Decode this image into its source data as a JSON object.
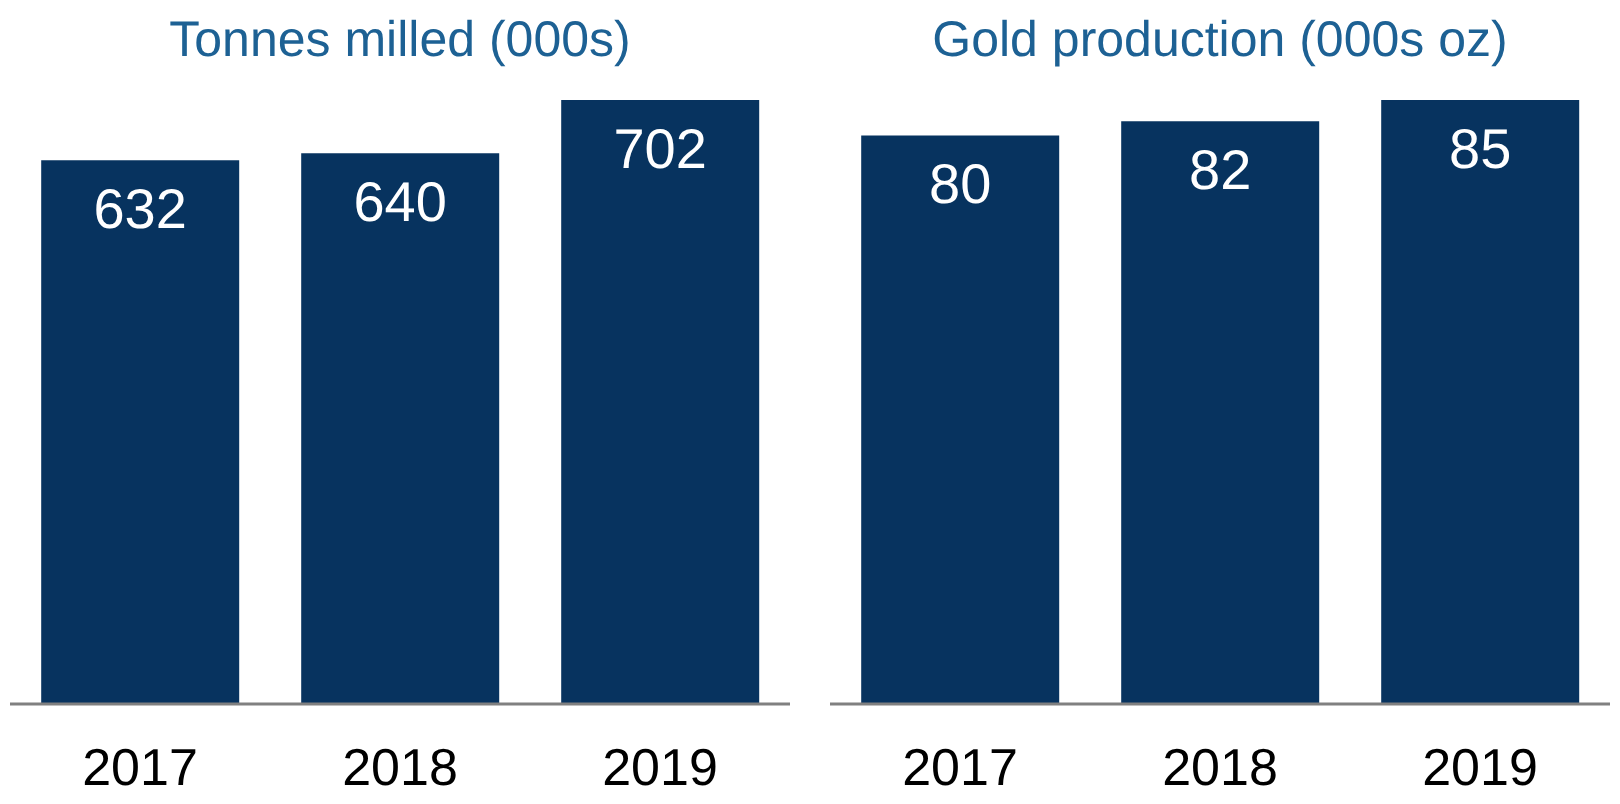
{
  "chart_data": [
    {
      "type": "bar",
      "title": "Tonnes milled (000s)",
      "categories": [
        "2017",
        "2018",
        "2019"
      ],
      "values": [
        632,
        640,
        702
      ],
      "color": "#07335f",
      "data_labels": true
    },
    {
      "type": "bar",
      "title": "Gold production (000s oz)",
      "categories": [
        "2017",
        "2018",
        "2019"
      ],
      "values": [
        80,
        82,
        85
      ],
      "color": "#07335f",
      "data_labels": true
    }
  ]
}
